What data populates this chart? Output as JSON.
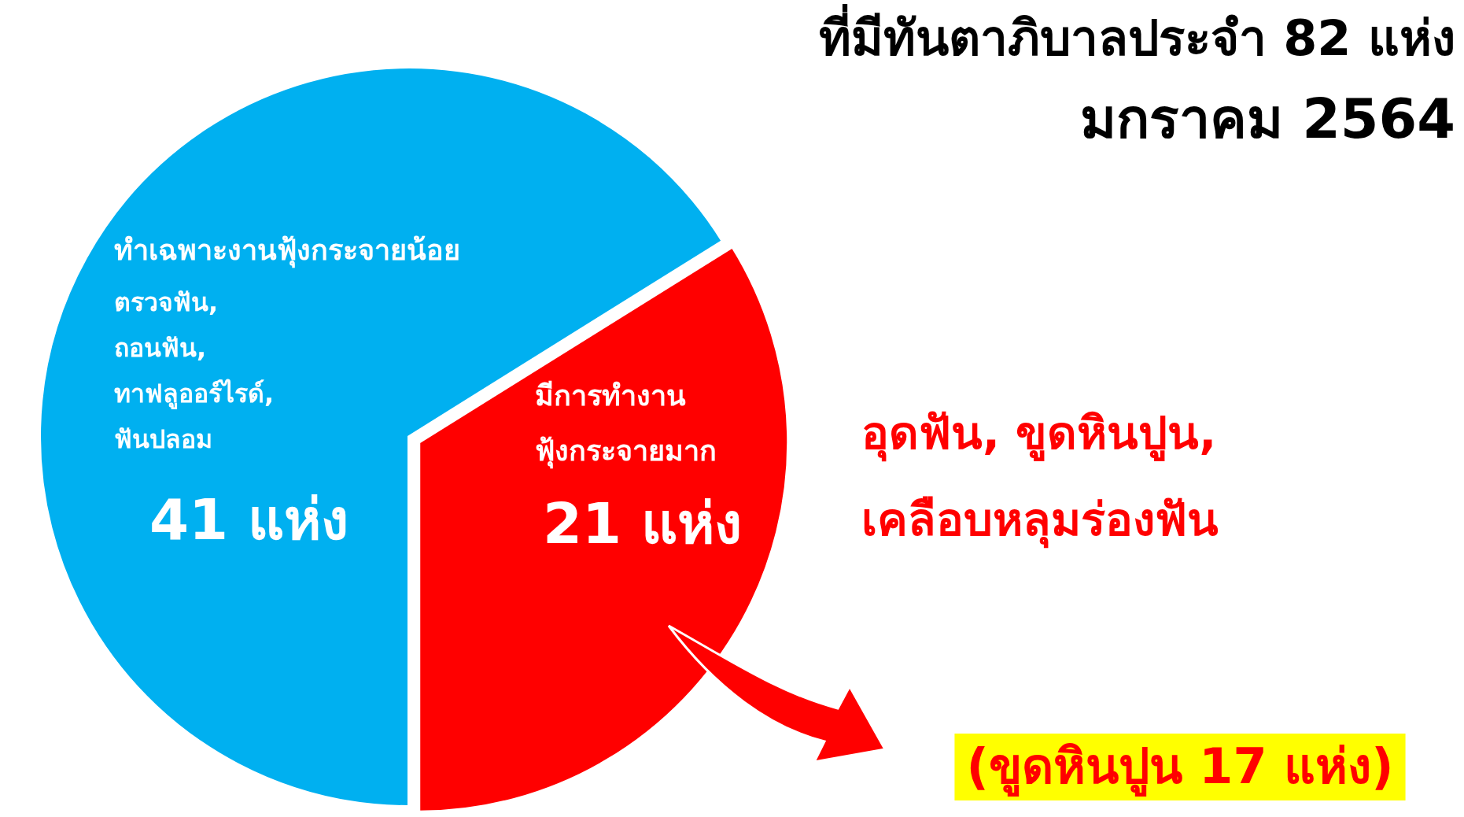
{
  "chart_data": {
    "type": "pie",
    "title": "ที่มีทันตาภิบาลประจำ 82 แห่ง",
    "subtitle": "มกราคม 2564",
    "categories": [
      "ทำเฉพาะงานฟุ้งกระจายน้อย",
      "มีการทำงาน\nฟุ้งกระจายมาก"
    ],
    "values": [
      41,
      21
    ],
    "colors": [
      "#00b0f0",
      "#ff0000"
    ],
    "value_labels": [
      "41 แห่ง",
      "21 แห่ง"
    ],
    "annotations": [
      "ตรวจฟัน,\nถอนฟัน,\nทาฟลูออร์ไรด์,\nฟันปลอม",
      "อุดฟัน, ขูดหินปูน,\nเคลือบหลุมร่องฟัน",
      "(ขูดหินปูน 17 แห่ง)"
    ]
  }
}
